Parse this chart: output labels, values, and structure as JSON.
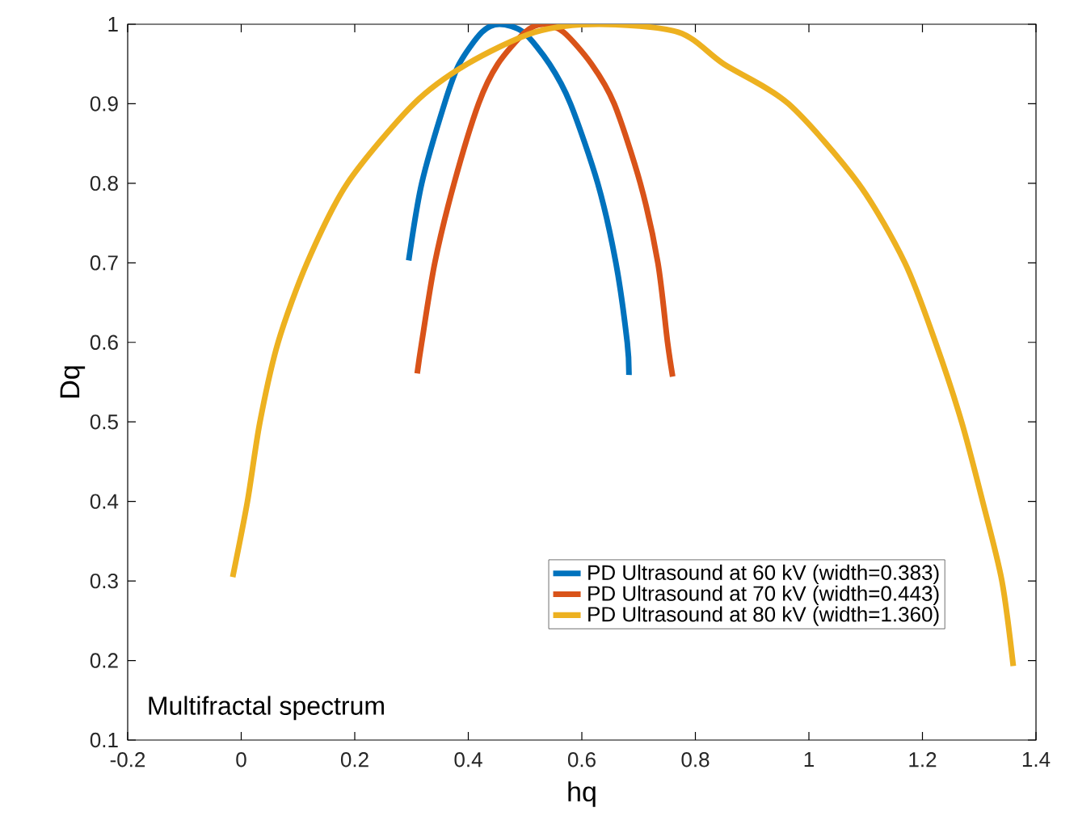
{
  "chart_data": {
    "type": "line",
    "xlabel": "hq",
    "ylabel": "Dq",
    "annotations": [
      "Multifractal spectrum"
    ],
    "xlim": [
      -0.2,
      1.4
    ],
    "ylim": [
      0.1,
      1
    ],
    "xticks": [
      -0.2,
      0,
      0.2,
      0.4,
      0.6,
      0.8,
      1,
      1.2,
      1.4
    ],
    "yticks": [
      0.1,
      0.2,
      0.3,
      0.4,
      0.5,
      0.6,
      0.7,
      0.8,
      0.9,
      1
    ],
    "legend": "bottom right",
    "grid": false,
    "marker": "none",
    "line_style": "solid",
    "series": [
      {
        "name": "PD Ultrasound at 60 kV (width=0.383)",
        "color": "#0072bd",
        "x": [
          0.295,
          0.318,
          0.358,
          0.384,
          0.424,
          0.455,
          0.497,
          0.543,
          0.58,
          0.628,
          0.66,
          0.68,
          0.683
        ],
        "values": [
          0.703,
          0.8,
          0.9,
          0.95,
          0.99,
          1,
          0.99,
          0.95,
          0.9,
          0.8,
          0.7,
          0.6,
          0.559
        ]
      },
      {
        "name": "PD Ultrasound at 70 kV (width=0.443)",
        "color": "#d95319",
        "x": [
          0.31,
          0.318,
          0.341,
          0.375,
          0.418,
          0.452,
          0.5,
          0.532,
          0.568,
          0.617,
          0.657,
          0.703,
          0.734,
          0.751,
          0.76
        ],
        "values": [
          0.561,
          0.6,
          0.7,
          0.8,
          0.9,
          0.95,
          0.99,
          1,
          0.99,
          0.95,
          0.9,
          0.8,
          0.7,
          0.6,
          0.557
        ]
      },
      {
        "name": "PD Ultrasound at 80 kV (width=1.360)",
        "color": "#edb120",
        "x": [
          -0.015,
          0.011,
          0.033,
          0.065,
          0.116,
          0.187,
          0.304,
          0.398,
          0.517,
          0.63,
          0.77,
          0.85,
          0.964,
          1.087,
          1.169,
          1.223,
          1.269,
          1.306,
          1.34,
          1.36
        ],
        "values": [
          0.305,
          0.4,
          0.5,
          0.6,
          0.7,
          0.8,
          0.9,
          0.95,
          0.99,
          1,
          0.99,
          0.95,
          0.9,
          0.8,
          0.7,
          0.6,
          0.5,
          0.4,
          0.3,
          0.193
        ]
      }
    ]
  }
}
